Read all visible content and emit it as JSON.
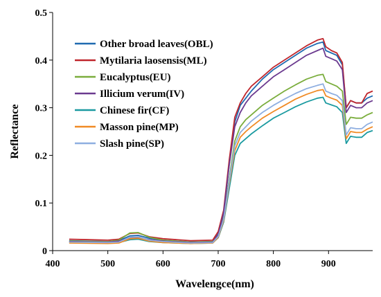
{
  "chart_data": {
    "type": "line",
    "xlabel": "Wavelengce(nm)",
    "ylabel": "Reflectance",
    "xlim": [
      400,
      980
    ],
    "ylim": [
      0,
      0.5
    ],
    "x_ticks": [
      "400",
      "500",
      "600",
      "700",
      "800",
      "900"
    ],
    "y_ticks": [
      "0",
      "0.1",
      "0.2",
      "0.3",
      "0.4",
      "0.5"
    ],
    "legend_position": "top-left",
    "grid": false,
    "x": [
      430,
      500,
      520,
      540,
      555,
      575,
      600,
      650,
      690,
      700,
      710,
      720,
      730,
      740,
      750,
      760,
      780,
      800,
      820,
      840,
      860,
      880,
      890,
      895,
      905,
      915,
      925,
      932,
      940,
      950,
      960,
      970,
      980
    ],
    "series": [
      {
        "name": "Other broad leaves(OBL)",
        "color": "#1f6ab0",
        "values": [
          0.021,
          0.019,
          0.021,
          0.031,
          0.032,
          0.026,
          0.022,
          0.018,
          0.019,
          0.035,
          0.08,
          0.18,
          0.27,
          0.305,
          0.32,
          0.335,
          0.36,
          0.38,
          0.395,
          0.41,
          0.425,
          0.435,
          0.438,
          0.42,
          0.415,
          0.41,
          0.39,
          0.3,
          0.315,
          0.31,
          0.31,
          0.32,
          0.325
        ]
      },
      {
        "name": "Mytilaria laosensis(ML)",
        "color": "#c0262c",
        "values": [
          0.024,
          0.022,
          0.024,
          0.036,
          0.037,
          0.029,
          0.025,
          0.021,
          0.022,
          0.04,
          0.085,
          0.19,
          0.28,
          0.31,
          0.33,
          0.345,
          0.365,
          0.385,
          0.4,
          0.415,
          0.43,
          0.442,
          0.445,
          0.428,
          0.42,
          0.415,
          0.395,
          0.3,
          0.315,
          0.31,
          0.31,
          0.33,
          0.335
        ]
      },
      {
        "name": "Eucalyptus(EU)",
        "color": "#7aad3c",
        "values": [
          0.02,
          0.019,
          0.022,
          0.037,
          0.038,
          0.028,
          0.022,
          0.018,
          0.019,
          0.032,
          0.07,
          0.15,
          0.23,
          0.26,
          0.275,
          0.285,
          0.305,
          0.32,
          0.335,
          0.348,
          0.36,
          0.368,
          0.37,
          0.355,
          0.35,
          0.345,
          0.335,
          0.265,
          0.28,
          0.278,
          0.278,
          0.285,
          0.29
        ]
      },
      {
        "name": "Illicium verum(IV)",
        "color": "#6b3a8f",
        "values": [
          0.019,
          0.018,
          0.02,
          0.027,
          0.028,
          0.023,
          0.02,
          0.017,
          0.018,
          0.033,
          0.08,
          0.18,
          0.26,
          0.29,
          0.31,
          0.325,
          0.345,
          0.365,
          0.38,
          0.395,
          0.41,
          0.42,
          0.425,
          0.408,
          0.403,
          0.398,
          0.38,
          0.29,
          0.305,
          0.3,
          0.3,
          0.31,
          0.315
        ]
      },
      {
        "name": "Chinese fir(CF)",
        "color": "#1a9aa0",
        "values": [
          0.017,
          0.016,
          0.017,
          0.023,
          0.024,
          0.019,
          0.017,
          0.015,
          0.016,
          0.027,
          0.06,
          0.13,
          0.2,
          0.225,
          0.235,
          0.245,
          0.262,
          0.278,
          0.29,
          0.302,
          0.312,
          0.32,
          0.322,
          0.31,
          0.306,
          0.302,
          0.29,
          0.225,
          0.24,
          0.238,
          0.238,
          0.248,
          0.252
        ]
      },
      {
        "name": "Masson pine(MP)",
        "color": "#f08a24",
        "values": [
          0.016,
          0.015,
          0.016,
          0.025,
          0.026,
          0.02,
          0.017,
          0.015,
          0.016,
          0.028,
          0.063,
          0.14,
          0.21,
          0.238,
          0.25,
          0.26,
          0.278,
          0.292,
          0.305,
          0.318,
          0.328,
          0.336,
          0.338,
          0.325,
          0.32,
          0.316,
          0.305,
          0.235,
          0.25,
          0.248,
          0.248,
          0.255,
          0.26
        ]
      },
      {
        "name": "Slash pine(SP)",
        "color": "#8eaee0",
        "values": [
          0.018,
          0.017,
          0.018,
          0.028,
          0.029,
          0.022,
          0.019,
          0.016,
          0.017,
          0.03,
          0.066,
          0.145,
          0.22,
          0.248,
          0.26,
          0.272,
          0.29,
          0.305,
          0.318,
          0.33,
          0.34,
          0.347,
          0.35,
          0.335,
          0.33,
          0.326,
          0.315,
          0.243,
          0.258,
          0.256,
          0.256,
          0.265,
          0.27
        ]
      }
    ]
  }
}
